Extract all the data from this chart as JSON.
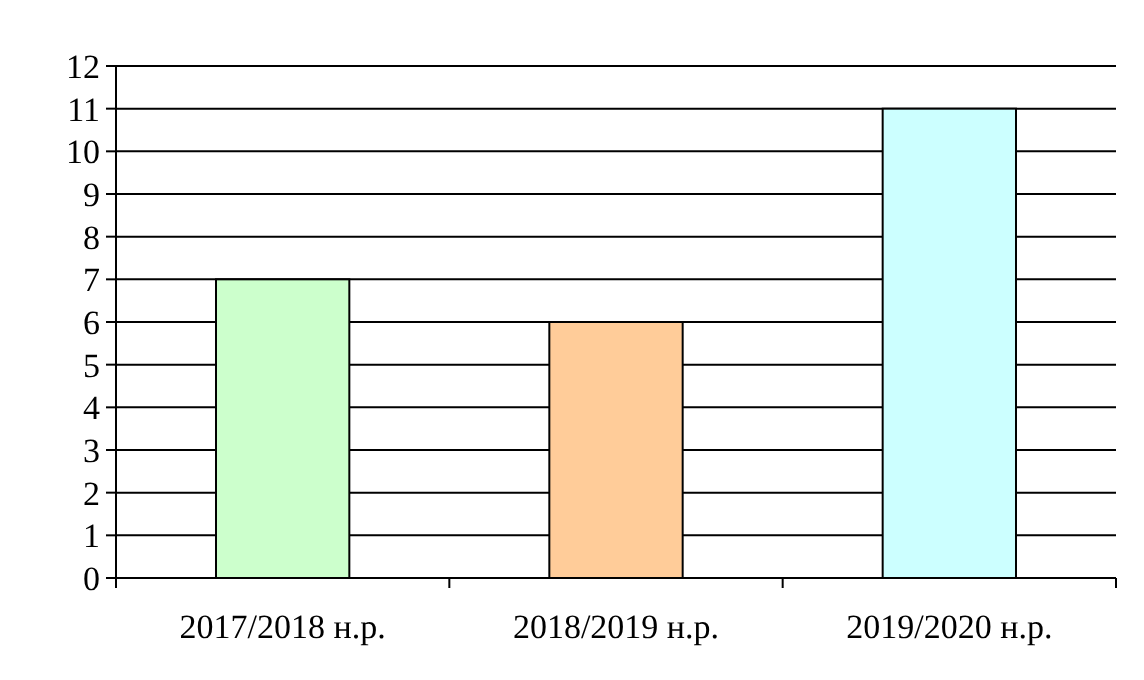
{
  "chart_data": {
    "type": "bar",
    "categories": [
      "2017/2018 н.р.",
      "2018/2019 н.р.",
      "2019/2020 н.р."
    ],
    "values": [
      7,
      6,
      11
    ],
    "colors": [
      "#ccffcc",
      "#ffcc99",
      "#ccffff"
    ],
    "ylim": [
      0,
      12
    ],
    "yticks": [
      0,
      1,
      2,
      3,
      4,
      5,
      6,
      7,
      8,
      9,
      10,
      11,
      12
    ],
    "grid": "y"
  }
}
